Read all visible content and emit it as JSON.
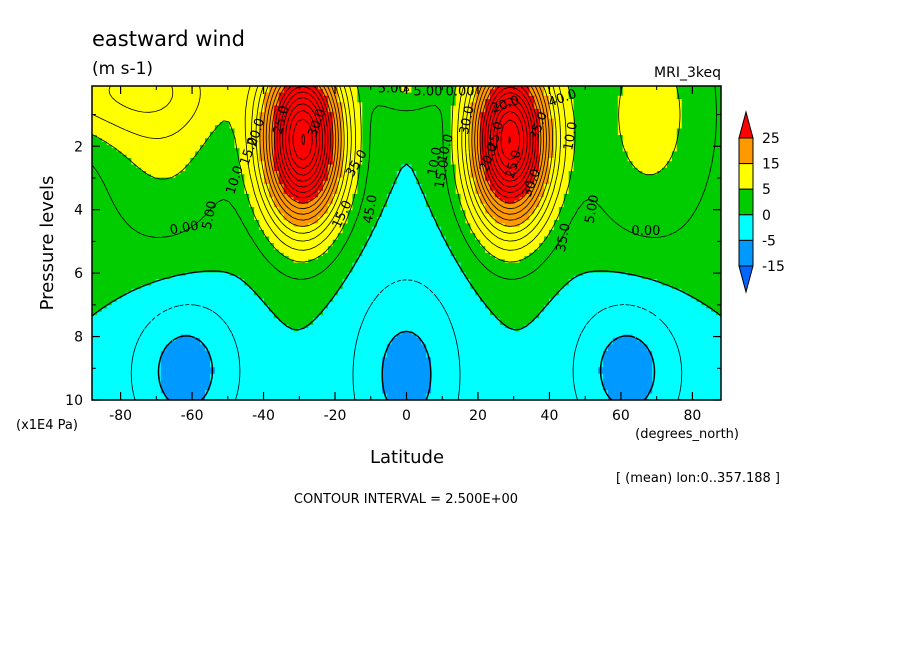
{
  "chart_data": {
    "type": "heatmap",
    "title": "eastward wind",
    "units": "(m s-1)",
    "model": "MRI_3keq",
    "xlabel": "Latitude",
    "xunits": "(degrees_north)",
    "ylabel": "Pressure levels",
    "yunits": "(x1E4 Pa)",
    "xlim": [
      -88,
      88
    ],
    "ylim": [
      0.1,
      10
    ],
    "y_inverted": true,
    "xticks": [
      -80,
      -60,
      -40,
      -20,
      0,
      20,
      40,
      60,
      80
    ],
    "xtick_labels": [
      "-80",
      "-60",
      "-40",
      "-20",
      "0",
      "20",
      "40",
      "60",
      "80"
    ],
    "yticks": [
      2,
      4,
      6,
      8,
      10
    ],
    "ytick_labels": [
      "2",
      "4",
      "6",
      "8",
      "10"
    ],
    "averaging_note": "[ (mean) lon:0..357.188 ]",
    "contour_interval_text": "CONTOUR INTERVAL = 2.500E+00",
    "contour_interval": 2.5,
    "colorbar": {
      "labels": [
        "25",
        "15",
        "5",
        "0",
        "-5",
        "-15"
      ],
      "bands": [
        {
          "min": 25,
          "max": null,
          "color": "#ff0000"
        },
        {
          "min": 15,
          "max": 25,
          "color": "#ff9900"
        },
        {
          "min": 5,
          "max": 15,
          "color": "#ffff00"
        },
        {
          "min": 0,
          "max": 5,
          "color": "#00cc00"
        },
        {
          "min": -5,
          "max": 0,
          "color": "#00ffff"
        },
        {
          "min": -15,
          "max": -5,
          "color": "#0099ff"
        },
        {
          "min": null,
          "max": -15,
          "color": "#0066ff"
        }
      ]
    },
    "contour_labels": [
      "5.00",
      "0.00",
      "10.0",
      "15.0",
      "20.0",
      "25.0",
      "30.0",
      "35.0",
      "45.0",
      "5.00",
      "0.00",
      "10.0",
      "15.0",
      "20.0",
      "25.0",
      "30.0",
      "35.0",
      "40.0",
      "5.00",
      "10.0",
      "15.0",
      "20.0",
      "25.0",
      "30.0",
      "35.0",
      "10.0",
      "5.00",
      "0.00"
    ],
    "jets": [
      {
        "lat": -29,
        "pressure": 1.8,
        "max_u": 45
      },
      {
        "lat": 29,
        "pressure": 1.8,
        "max_u": 45
      }
    ],
    "easterly_minima": [
      {
        "lat": -8,
        "pressure": 9.2,
        "min_u": -7.5
      },
      {
        "lat": 8,
        "pressure": 9.2,
        "min_u": -7.5
      },
      {
        "lat": -58,
        "pressure": 9.2,
        "min_u": -5
      }
    ]
  }
}
